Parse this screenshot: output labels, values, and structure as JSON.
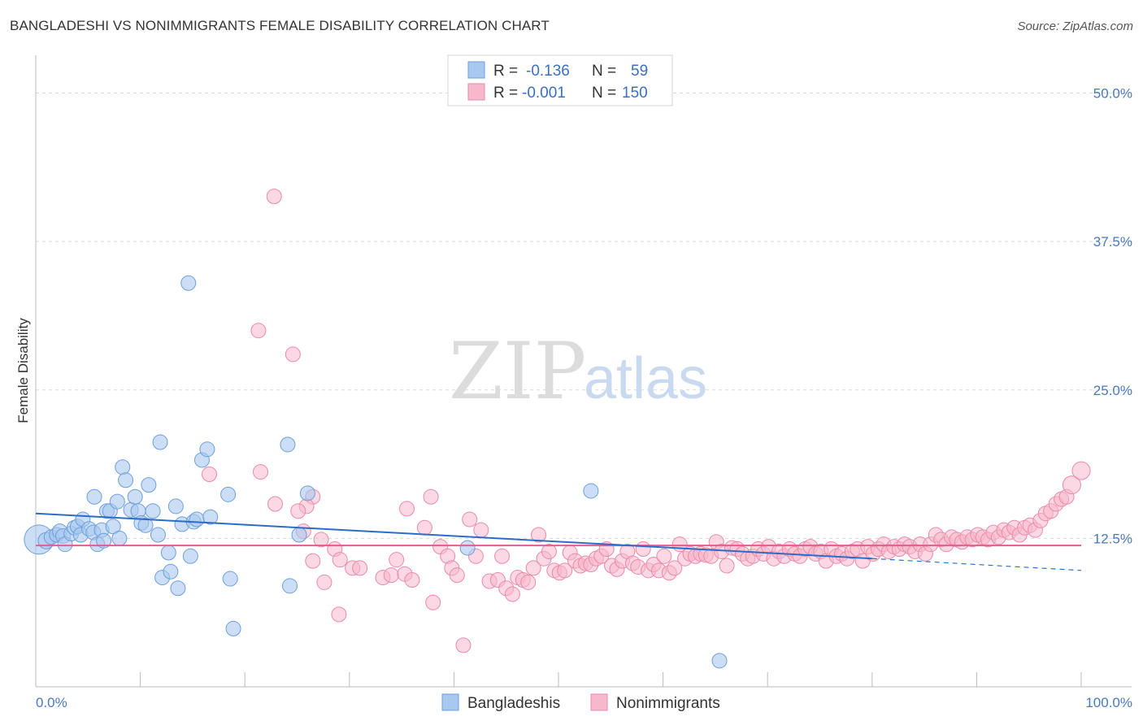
{
  "title": "BANGLADESHI VS NONIMMIGRANTS FEMALE DISABILITY CORRELATION CHART",
  "source": "Source: ZipAtlas.com",
  "watermark": {
    "zip": "ZIP",
    "atlas": "atlas"
  },
  "colors": {
    "bangladeshi_fill": "#a9c8ef",
    "bangladeshi_stroke": "#6d9fdc",
    "bangladeshi_line": "#2c6cc8",
    "nonimmigrant_fill": "#f7b8cc",
    "nonimmigrant_stroke": "#ea8aa8",
    "nonimmigrant_line": "#e65c8c",
    "grid": "#d9d9d9",
    "tick_text": "#4a78c2"
  },
  "legend": {
    "row1": {
      "r_label": "R =",
      "r_value": "-0.136",
      "n_label": "N =",
      "n_value": "59"
    },
    "row2": {
      "r_label": "R =",
      "r_value": "-0.001",
      "n_label": "N =",
      "n_value": "150"
    }
  },
  "chart_data": {
    "type": "scatter",
    "xlabel": "",
    "ylabel": "Female Disability",
    "xlim": [
      0,
      100
    ],
    "ylim": [
      0,
      52.5
    ],
    "x_tick_labels": [
      "0.0%",
      "100.0%"
    ],
    "y_ticks": [
      12.5,
      25.0,
      37.5,
      50.0
    ],
    "y_tick_labels": [
      "12.5%",
      "25.0%",
      "37.5%",
      "50.0%"
    ],
    "grid": "horizontal dashed",
    "legend_placement": "top-center",
    "series": [
      {
        "name": "Bangladeshis",
        "trend": {
          "x_start": 0,
          "y_start": 14.6,
          "x_end": 80,
          "y_end": 10.8,
          "dashed_to_x": 100,
          "dashed_to_y": 9.8
        },
        "points": [
          [
            0.3,
            12.4,
            18
          ],
          [
            1.0,
            12.3,
            10
          ],
          [
            1.5,
            12.6,
            9
          ],
          [
            2.0,
            12.8,
            9
          ],
          [
            2.3,
            13.1,
            9
          ],
          [
            2.6,
            12.7,
            9
          ],
          [
            2.8,
            12.0,
            9
          ],
          [
            3.4,
            12.9,
            9
          ],
          [
            3.7,
            13.4,
            9
          ],
          [
            4.0,
            13.5,
            9
          ],
          [
            4.3,
            12.8,
            9
          ],
          [
            4.5,
            14.1,
            9
          ],
          [
            5.1,
            13.3,
            9
          ],
          [
            5.5,
            13.0,
            9
          ],
          [
            5.6,
            16.0,
            9
          ],
          [
            5.9,
            12.0,
            9
          ],
          [
            6.3,
            13.2,
            9
          ],
          [
            6.5,
            12.3,
            9
          ],
          [
            6.8,
            14.8,
            9
          ],
          [
            7.1,
            14.8,
            9
          ],
          [
            7.4,
            13.5,
            9
          ],
          [
            7.8,
            15.6,
            9
          ],
          [
            8.0,
            12.5,
            9
          ],
          [
            8.3,
            18.5,
            9
          ],
          [
            8.6,
            17.4,
            9
          ],
          [
            9.1,
            14.9,
            9
          ],
          [
            9.5,
            16.0,
            9
          ],
          [
            9.8,
            14.8,
            9
          ],
          [
            10.1,
            13.8,
            9
          ],
          [
            10.5,
            13.6,
            9
          ],
          [
            10.8,
            17.0,
            9
          ],
          [
            11.2,
            14.8,
            9
          ],
          [
            11.7,
            12.8,
            9
          ],
          [
            11.9,
            20.6,
            9
          ],
          [
            12.1,
            9.2,
            9
          ],
          [
            12.7,
            11.3,
            9
          ],
          [
            12.9,
            9.7,
            9
          ],
          [
            13.4,
            15.2,
            9
          ],
          [
            13.6,
            8.3,
            9
          ],
          [
            14.0,
            13.7,
            9
          ],
          [
            14.6,
            34.0,
            9
          ],
          [
            14.8,
            11.0,
            9
          ],
          [
            15.1,
            13.9,
            9
          ],
          [
            15.4,
            14.1,
            9
          ],
          [
            15.9,
            19.1,
            9
          ],
          [
            16.4,
            20.0,
            9
          ],
          [
            16.7,
            14.3,
            9
          ],
          [
            18.4,
            16.2,
            9
          ],
          [
            18.6,
            9.1,
            9
          ],
          [
            18.9,
            4.9,
            9
          ],
          [
            24.1,
            20.4,
            9
          ],
          [
            24.3,
            8.5,
            9
          ],
          [
            25.2,
            12.8,
            9
          ],
          [
            26.0,
            16.3,
            9
          ],
          [
            41.3,
            11.7,
            9
          ],
          [
            53.1,
            16.5,
            9
          ],
          [
            65.4,
            2.2,
            9
          ]
        ]
      },
      {
        "name": "Nonimmigrants",
        "trend": {
          "x_start": 0,
          "y_start": 11.9,
          "x_end": 100,
          "y_end": 11.9
        },
        "points": [
          [
            22.8,
            41.3,
            9
          ],
          [
            21.3,
            30.0,
            9
          ],
          [
            24.6,
            28.0,
            9
          ],
          [
            21.5,
            18.1,
            9
          ],
          [
            16.6,
            17.9,
            9
          ],
          [
            26.5,
            16.0,
            9
          ],
          [
            25.9,
            15.2,
            9
          ],
          [
            25.1,
            14.8,
            9
          ],
          [
            22.9,
            15.4,
            9
          ],
          [
            27.3,
            12.4,
            9
          ],
          [
            28.6,
            11.6,
            9
          ],
          [
            29.1,
            10.7,
            9
          ],
          [
            30.3,
            10.0,
            9
          ],
          [
            31.0,
            10.0,
            9
          ],
          [
            25.6,
            13.1,
            9
          ],
          [
            26.5,
            10.6,
            9
          ],
          [
            27.6,
            8.8,
            9
          ],
          [
            29.0,
            6.1,
            9
          ],
          [
            33.2,
            9.2,
            9
          ],
          [
            34.0,
            9.4,
            9
          ],
          [
            34.5,
            10.7,
            9
          ],
          [
            35.3,
            9.5,
            9
          ],
          [
            35.5,
            15.0,
            9
          ],
          [
            36.0,
            9.0,
            9
          ],
          [
            37.2,
            13.4,
            9
          ],
          [
            37.8,
            16.0,
            9
          ],
          [
            38.0,
            7.1,
            9
          ],
          [
            38.7,
            11.8,
            9
          ],
          [
            39.4,
            11.0,
            9
          ],
          [
            39.8,
            10.0,
            9
          ],
          [
            40.3,
            9.4,
            9
          ],
          [
            40.9,
            3.5,
            9
          ],
          [
            41.5,
            14.1,
            9
          ],
          [
            42.1,
            11.0,
            9
          ],
          [
            42.6,
            13.2,
            9
          ],
          [
            43.4,
            8.9,
            9
          ],
          [
            44.2,
            9.0,
            9
          ],
          [
            44.6,
            11.0,
            9
          ],
          [
            45.0,
            8.3,
            9
          ],
          [
            45.6,
            7.8,
            9
          ],
          [
            46.1,
            9.2,
            9
          ],
          [
            46.6,
            9.0,
            9
          ],
          [
            47.1,
            8.8,
            9
          ],
          [
            47.6,
            10.0,
            9
          ],
          [
            48.1,
            12.8,
            9
          ],
          [
            48.6,
            10.8,
            9
          ],
          [
            49.1,
            11.4,
            9
          ],
          [
            49.6,
            9.8,
            9
          ],
          [
            50.1,
            9.6,
            9
          ],
          [
            50.6,
            9.8,
            9
          ],
          [
            51.1,
            11.3,
            9
          ],
          [
            51.6,
            10.6,
            9
          ],
          [
            52.1,
            10.2,
            9
          ],
          [
            52.6,
            10.4,
            9
          ],
          [
            53.1,
            10.3,
            9
          ],
          [
            53.6,
            10.8,
            9
          ],
          [
            54.1,
            11.0,
            9
          ],
          [
            54.6,
            11.6,
            9
          ],
          [
            55.1,
            10.2,
            9
          ],
          [
            55.6,
            9.9,
            9
          ],
          [
            56.1,
            10.6,
            9
          ],
          [
            56.6,
            11.4,
            9
          ],
          [
            57.1,
            10.4,
            9
          ],
          [
            57.6,
            10.1,
            9
          ],
          [
            58.1,
            11.6,
            9
          ],
          [
            58.6,
            9.8,
            9
          ],
          [
            59.1,
            10.3,
            9
          ],
          [
            59.6,
            9.8,
            9
          ],
          [
            60.1,
            11.0,
            9
          ],
          [
            60.6,
            9.6,
            9
          ],
          [
            61.1,
            10.0,
            9
          ],
          [
            61.6,
            12.0,
            9
          ],
          [
            62.1,
            10.8,
            9
          ],
          [
            62.6,
            11.2,
            9
          ],
          [
            63.1,
            11.0,
            9
          ],
          [
            63.6,
            11.2,
            9
          ],
          [
            64.1,
            11.1,
            9
          ],
          [
            64.6,
            11.0,
            9
          ],
          [
            65.1,
            12.2,
            9
          ],
          [
            65.6,
            11.4,
            9
          ],
          [
            66.1,
            10.2,
            9
          ],
          [
            66.6,
            11.7,
            9
          ],
          [
            67.1,
            11.6,
            9
          ],
          [
            67.6,
            11.2,
            9
          ],
          [
            68.1,
            10.8,
            9
          ],
          [
            68.6,
            11.0,
            9
          ],
          [
            69.1,
            11.6,
            9
          ],
          [
            69.6,
            11.2,
            9
          ],
          [
            70.1,
            11.8,
            9
          ],
          [
            70.6,
            10.8,
            9
          ],
          [
            71.1,
            11.4,
            9
          ],
          [
            71.6,
            11.0,
            9
          ],
          [
            72.1,
            11.6,
            9
          ],
          [
            72.6,
            11.2,
            9
          ],
          [
            73.1,
            11.0,
            9
          ],
          [
            73.6,
            11.6,
            9
          ],
          [
            74.1,
            11.8,
            9
          ],
          [
            74.6,
            11.2,
            9
          ],
          [
            75.1,
            11.4,
            9
          ],
          [
            75.6,
            10.6,
            9
          ],
          [
            76.1,
            11.6,
            9
          ],
          [
            76.6,
            11.0,
            9
          ],
          [
            77.1,
            11.2,
            9
          ],
          [
            77.6,
            10.8,
            9
          ],
          [
            78.1,
            11.4,
            9
          ],
          [
            78.6,
            11.6,
            9
          ],
          [
            79.1,
            10.6,
            9
          ],
          [
            79.6,
            11.8,
            9
          ],
          [
            80.1,
            11.2,
            9
          ],
          [
            80.6,
            11.6,
            9
          ],
          [
            81.1,
            12.0,
            9
          ],
          [
            81.6,
            11.4,
            9
          ],
          [
            82.1,
            11.8,
            9
          ],
          [
            82.6,
            11.6,
            9
          ],
          [
            83.1,
            12.0,
            9
          ],
          [
            83.6,
            11.8,
            9
          ],
          [
            84.1,
            11.4,
            9
          ],
          [
            84.6,
            12.0,
            9
          ],
          [
            85.1,
            11.2,
            9
          ],
          [
            85.6,
            12.0,
            9
          ],
          [
            86.1,
            12.8,
            9
          ],
          [
            86.6,
            12.4,
            9
          ],
          [
            87.1,
            12.0,
            9
          ],
          [
            87.6,
            12.6,
            9
          ],
          [
            88.1,
            12.4,
            9
          ],
          [
            88.6,
            12.2,
            9
          ],
          [
            89.1,
            12.6,
            9
          ],
          [
            89.6,
            12.4,
            9
          ],
          [
            90.1,
            12.8,
            9
          ],
          [
            90.6,
            12.6,
            9
          ],
          [
            91.1,
            12.4,
            9
          ],
          [
            91.6,
            13.0,
            9
          ],
          [
            92.1,
            12.6,
            9
          ],
          [
            92.6,
            13.2,
            9
          ],
          [
            93.1,
            13.0,
            9
          ],
          [
            93.6,
            13.4,
            9
          ],
          [
            94.1,
            12.8,
            9
          ],
          [
            94.6,
            13.4,
            9
          ],
          [
            95.1,
            13.6,
            9
          ],
          [
            95.6,
            13.2,
            9
          ],
          [
            96.1,
            14.0,
            9
          ],
          [
            96.6,
            14.6,
            9
          ],
          [
            97.1,
            14.8,
            9
          ],
          [
            97.6,
            15.4,
            9
          ],
          [
            98.1,
            15.8,
            9
          ],
          [
            98.6,
            16.0,
            9
          ],
          [
            99.1,
            17.0,
            11
          ],
          [
            100.0,
            18.2,
            11
          ]
        ]
      }
    ]
  }
}
